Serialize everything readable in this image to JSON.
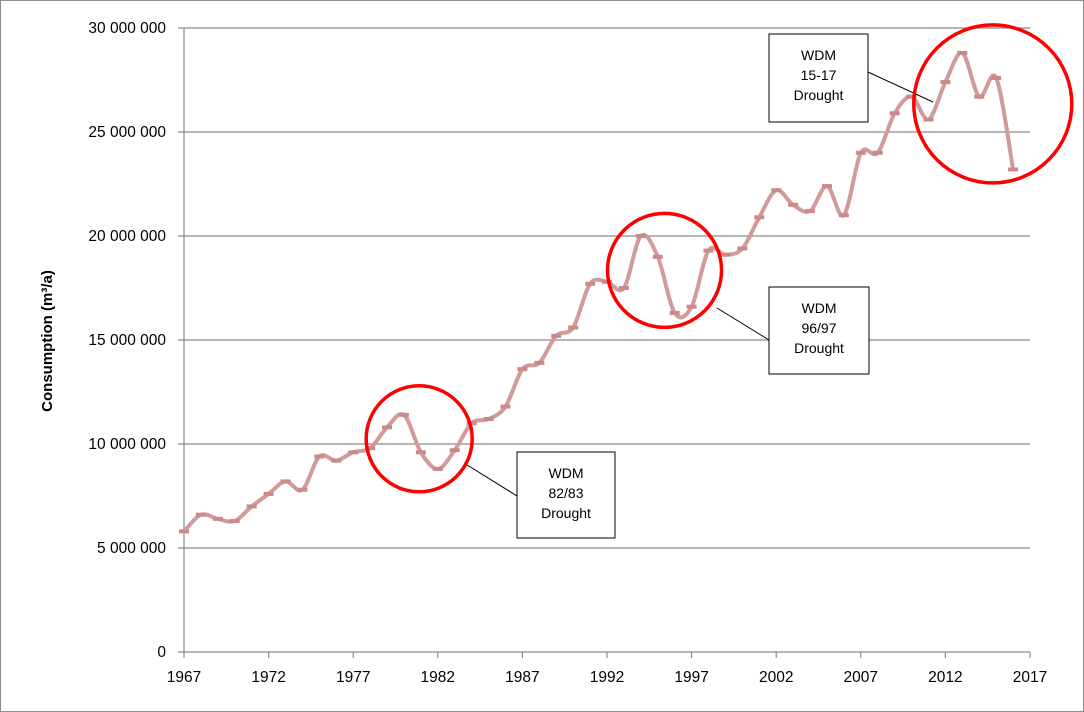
{
  "chart_data": {
    "type": "line",
    "title": "",
    "xlabel": "",
    "ylabel": "Consumption (m³/a)",
    "xlim": [
      1967,
      2017
    ],
    "ylim": [
      0,
      30000000
    ],
    "x_ticks": [
      "1967",
      "1972",
      "1977",
      "1982",
      "1987",
      "1992",
      "1997",
      "2002",
      "2007",
      "2012",
      "2017"
    ],
    "y_ticks": [
      "0",
      "5 000 000",
      "10 000 000",
      "15 000 000",
      "20 000 000",
      "25 000 000",
      "30 000 000"
    ],
    "grid": true,
    "legend": "none",
    "line_color": "#d39a9a",
    "x": [
      1967,
      1968,
      1969,
      1970,
      1971,
      1972,
      1973,
      1974,
      1975,
      1976,
      1977,
      1978,
      1979,
      1980,
      1981,
      1982,
      1983,
      1984,
      1985,
      1986,
      1987,
      1988,
      1989,
      1990,
      1991,
      1992,
      1993,
      1994,
      1995,
      1996,
      1997,
      1998,
      1999,
      2000,
      2001,
      2002,
      2003,
      2004,
      2005,
      2006,
      2007,
      2008,
      2009,
      2010,
      2011,
      2012,
      2013,
      2014,
      2015,
      2016
    ],
    "values": [
      5800000,
      6600000,
      6400000,
      6300000,
      7000000,
      7600000,
      8200000,
      7800000,
      9400000,
      9200000,
      9600000,
      9800000,
      10800000,
      11400000,
      9600000,
      8800000,
      9700000,
      11000000,
      11200000,
      11800000,
      13600000,
      13900000,
      15200000,
      15600000,
      17700000,
      17800000,
      17500000,
      20000000,
      19000000,
      16300000,
      16600000,
      19300000,
      19100000,
      19400000,
      20900000,
      22200000,
      21500000,
      21200000,
      22400000,
      21000000,
      24000000,
      24000000,
      25900000,
      26700000,
      25600000,
      27400000,
      28800000,
      26700000,
      27600000,
      23200000
    ],
    "annotations": [
      {
        "lines": [
          "WDM",
          "82/83",
          "Drought"
        ],
        "circle_x": 1980.9,
        "circle_y": 10250000
      },
      {
        "lines": [
          "WDM",
          "96/97",
          "Drought"
        ],
        "circle_x": 1995.4,
        "circle_y": 18350000
      },
      {
        "lines": [
          "WDM",
          "15-17",
          "Drought"
        ],
        "circle_x": 2014.8,
        "circle_y": 26350000
      }
    ],
    "annotation_color": "#ff0000"
  }
}
